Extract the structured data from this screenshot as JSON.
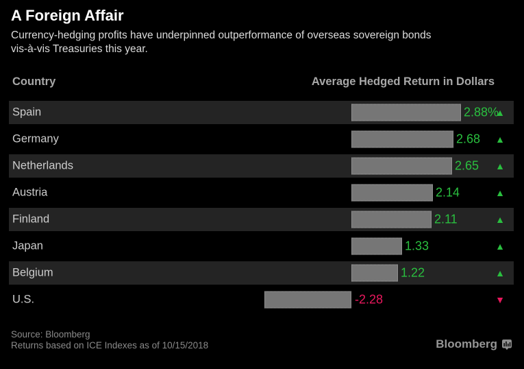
{
  "title": "A Foreign Affair",
  "subtitle": {
    "line1": "Currency-hedging profits have underpinned outperformance of overseas sovereign bonds",
    "line2": "vis-à-vis Treasuries this year."
  },
  "columns": {
    "left": "Country",
    "right": "Average Hedged Return in Dollars"
  },
  "chart_data": {
    "type": "bar",
    "orientation": "horizontal",
    "title": "A Foreign Affair",
    "value_axis_label": "Average Hedged Return in Dollars",
    "categories": [
      "Spain",
      "Germany",
      "Netherlands",
      "Austria",
      "Finland",
      "Japan",
      "Belgium",
      "U.S."
    ],
    "values": [
      2.88,
      2.68,
      2.65,
      2.14,
      2.11,
      1.33,
      1.22,
      -2.28
    ],
    "value_labels": [
      "2.88%",
      "2.68",
      "2.65",
      "2.14",
      "2.11",
      "1.33",
      "1.22",
      "-2.28"
    ],
    "directions": [
      "up",
      "up",
      "up",
      "up",
      "up",
      "up",
      "up",
      "down"
    ],
    "baseline": 0,
    "grid": false,
    "legend": false
  },
  "colors": {
    "background": "#000000",
    "row_stripe": "#242424",
    "bar": "#767676",
    "positive": "#2abf3f",
    "negative": "#e8185d",
    "title_text": "#ffffff",
    "body_text": "#cccccc"
  },
  "footer": {
    "source": "Source: Bloomberg",
    "note": "Returns based on ICE Indexes as of 10/15/2018",
    "brand": "Bloomberg"
  },
  "icons": {
    "up_triangle": "▲",
    "down_triangle": "▼"
  }
}
